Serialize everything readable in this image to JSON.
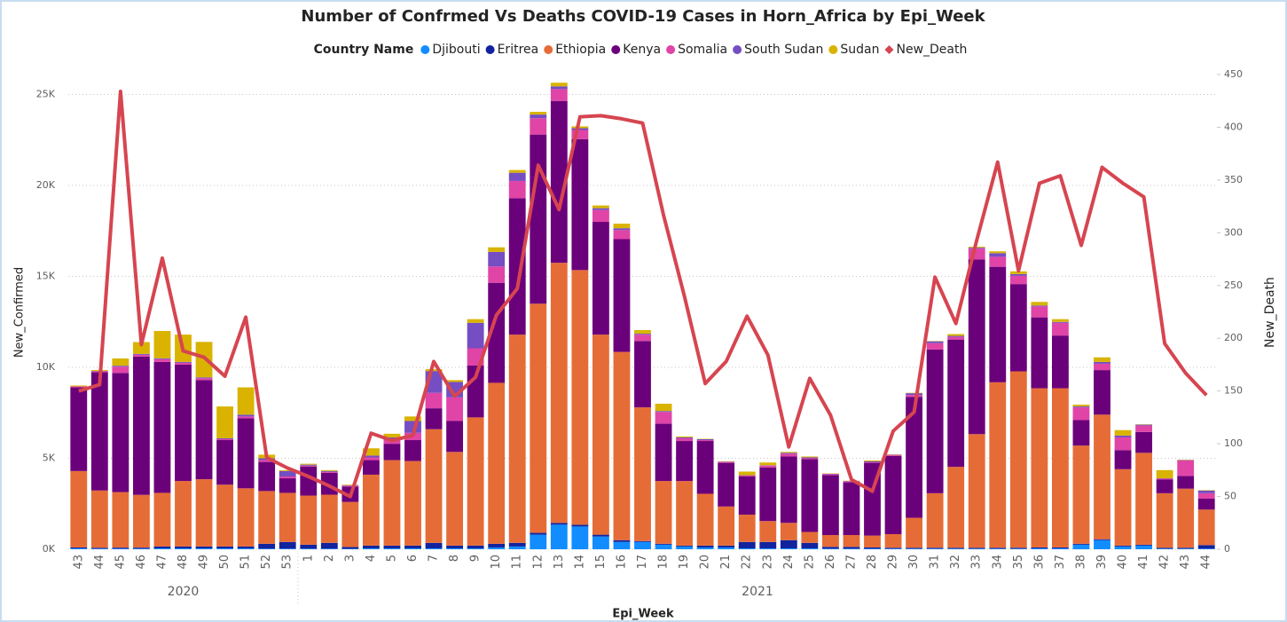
{
  "chart_data": {
    "type": "stacked_bar_line",
    "title": "Number of Confrmed Vs Deaths COVID-19 Cases in Horn_Africa by Epi_Week",
    "legend_title": "Country Name",
    "x_label": "Epi_Week",
    "y_label": "New_Confirmed",
    "y2_label": "New_Death",
    "categories": [
      "43",
      "44",
      "45",
      "46",
      "47",
      "48",
      "49",
      "50",
      "51",
      "52",
      "53",
      "1",
      "2",
      "3",
      "4",
      "5",
      "6",
      "7",
      "8",
      "9",
      "10",
      "11",
      "12",
      "13",
      "14",
      "15",
      "16",
      "17",
      "18",
      "19",
      "20",
      "21",
      "22",
      "23",
      "24",
      "25",
      "26",
      "27",
      "28",
      "29",
      "30",
      "31",
      "32",
      "33",
      "34",
      "35",
      "36",
      "37",
      "38",
      "39",
      "40",
      "41",
      "42",
      "43",
      "44"
    ],
    "x_groups": [
      {
        "label": "2020",
        "size": 11
      },
      {
        "label": "2021",
        "size": 44
      }
    ],
    "ylim": [
      0,
      26100
    ],
    "yticks": [
      {
        "value": 0,
        "label": "0K"
      },
      {
        "value": 5000,
        "label": "5K"
      },
      {
        "value": 10000,
        "label": "10K"
      },
      {
        "value": 15000,
        "label": "15K"
      },
      {
        "value": 20000,
        "label": "20K"
      },
      {
        "value": 25000,
        "label": "25K"
      }
    ],
    "y2lim": [
      0,
      450
    ],
    "y2ticks": [
      0,
      50,
      100,
      150,
      200,
      250,
      300,
      350,
      400,
      450
    ],
    "grid": true,
    "legend": "top",
    "series": [
      {
        "name": "Djibouti",
        "color": "#118dff",
        "values": [
          50,
          30,
          30,
          30,
          50,
          50,
          50,
          50,
          50,
          30,
          30,
          30,
          30,
          20,
          50,
          50,
          50,
          50,
          50,
          50,
          100,
          150,
          800,
          1350,
          1250,
          700,
          400,
          400,
          250,
          150,
          100,
          100,
          50,
          50,
          50,
          50,
          30,
          30,
          30,
          30,
          30,
          30,
          30,
          30,
          30,
          30,
          50,
          50,
          250,
          500,
          150,
          200,
          30,
          30,
          30
        ]
      },
      {
        "name": "Eritrea",
        "color": "#12239e",
        "values": [
          50,
          50,
          60,
          60,
          100,
          100,
          100,
          100,
          100,
          270,
          370,
          220,
          320,
          100,
          150,
          150,
          150,
          300,
          150,
          150,
          200,
          200,
          100,
          100,
          100,
          100,
          100,
          50,
          50,
          50,
          100,
          100,
          350,
          350,
          450,
          300,
          100,
          100,
          70,
          50,
          50,
          50,
          50,
          50,
          50,
          50,
          50,
          50,
          50,
          50,
          50,
          50,
          50,
          50,
          200
        ]
      },
      {
        "name": "Ethiopia",
        "color": "#e66c37",
        "values": [
          4200,
          3150,
          3050,
          2900,
          2950,
          3600,
          3700,
          3400,
          3200,
          2900,
          2700,
          2700,
          2650,
          2480,
          3900,
          4700,
          4650,
          6250,
          5150,
          7050,
          8850,
          11450,
          12600,
          14300,
          14000,
          11000,
          10350,
          7350,
          3450,
          3550,
          2850,
          2150,
          1500,
          1150,
          950,
          600,
          650,
          650,
          650,
          750,
          1650,
          3000,
          4450,
          6250,
          9100,
          9700,
          8750,
          8750,
          5400,
          6850,
          4200,
          5050,
          3000,
          3250,
          1950
        ]
      },
      {
        "name": "Kenya",
        "color": "#6b007b",
        "values": [
          4600,
          6500,
          6550,
          7600,
          7200,
          6400,
          5450,
          2450,
          3850,
          1600,
          800,
          1600,
          1200,
          850,
          800,
          900,
          1150,
          1150,
          1700,
          2850,
          5500,
          7500,
          9300,
          8900,
          7200,
          6200,
          6200,
          3650,
          3150,
          2200,
          2900,
          2400,
          2100,
          2950,
          3650,
          4000,
          3300,
          2900,
          4000,
          4300,
          6650,
          7900,
          7000,
          9600,
          6350,
          4800,
          3900,
          2900,
          1400,
          2450,
          1050,
          1150,
          750,
          700,
          600
        ]
      },
      {
        "name": "Somalia",
        "color": "#e044a7",
        "values": [
          50,
          50,
          350,
          100,
          150,
          100,
          100,
          50,
          100,
          100,
          100,
          50,
          50,
          50,
          150,
          200,
          400,
          850,
          1300,
          950,
          900,
          950,
          900,
          650,
          500,
          650,
          500,
          350,
          650,
          150,
          50,
          50,
          50,
          100,
          150,
          50,
          50,
          50,
          30,
          50,
          100,
          350,
          150,
          600,
          550,
          450,
          600,
          700,
          700,
          350,
          700,
          350,
          50,
          850,
          300
        ]
      },
      {
        "name": "South Sudan",
        "color": "#744ec2",
        "values": [
          0,
          20,
          50,
          50,
          50,
          50,
          50,
          50,
          100,
          100,
          300,
          50,
          50,
          20,
          100,
          150,
          650,
          1200,
          850,
          1400,
          800,
          450,
          200,
          150,
          100,
          100,
          100,
          50,
          50,
          50,
          50,
          20,
          20,
          20,
          50,
          50,
          20,
          20,
          50,
          20,
          100,
          100,
          50,
          50,
          200,
          100,
          50,
          50,
          50,
          100,
          100,
          50,
          20,
          20,
          150
        ]
      },
      {
        "name": "Sudan",
        "color": "#d9b300",
        "values": [
          50,
          50,
          400,
          650,
          1500,
          1500,
          1950,
          1750,
          1500,
          200,
          50,
          50,
          50,
          30,
          400,
          200,
          250,
          100,
          100,
          200,
          250,
          150,
          150,
          200,
          100,
          150,
          250,
          200,
          400,
          50,
          20,
          20,
          200,
          150,
          50,
          50,
          20,
          20,
          50,
          20,
          20,
          20,
          100,
          50,
          100,
          150,
          200,
          150,
          100,
          250,
          300,
          20,
          450,
          20,
          20
        ]
      },
      {
        "name": "New_Death",
        "color": "#d64550",
        "axis": "y2",
        "type": "line",
        "values": [
          150,
          156,
          434,
          194,
          276,
          188,
          182,
          164,
          220,
          87,
          77,
          69,
          60,
          50,
          110,
          103,
          108,
          178,
          145,
          163,
          222,
          247,
          364,
          322,
          410,
          411,
          408,
          404,
          317,
          240,
          157,
          178,
          221,
          184,
          97,
          162,
          127,
          66,
          55,
          112,
          130,
          258,
          214,
          293,
          367,
          264,
          347,
          354,
          288,
          362,
          347,
          334,
          195,
          167,
          146
        ]
      }
    ]
  }
}
